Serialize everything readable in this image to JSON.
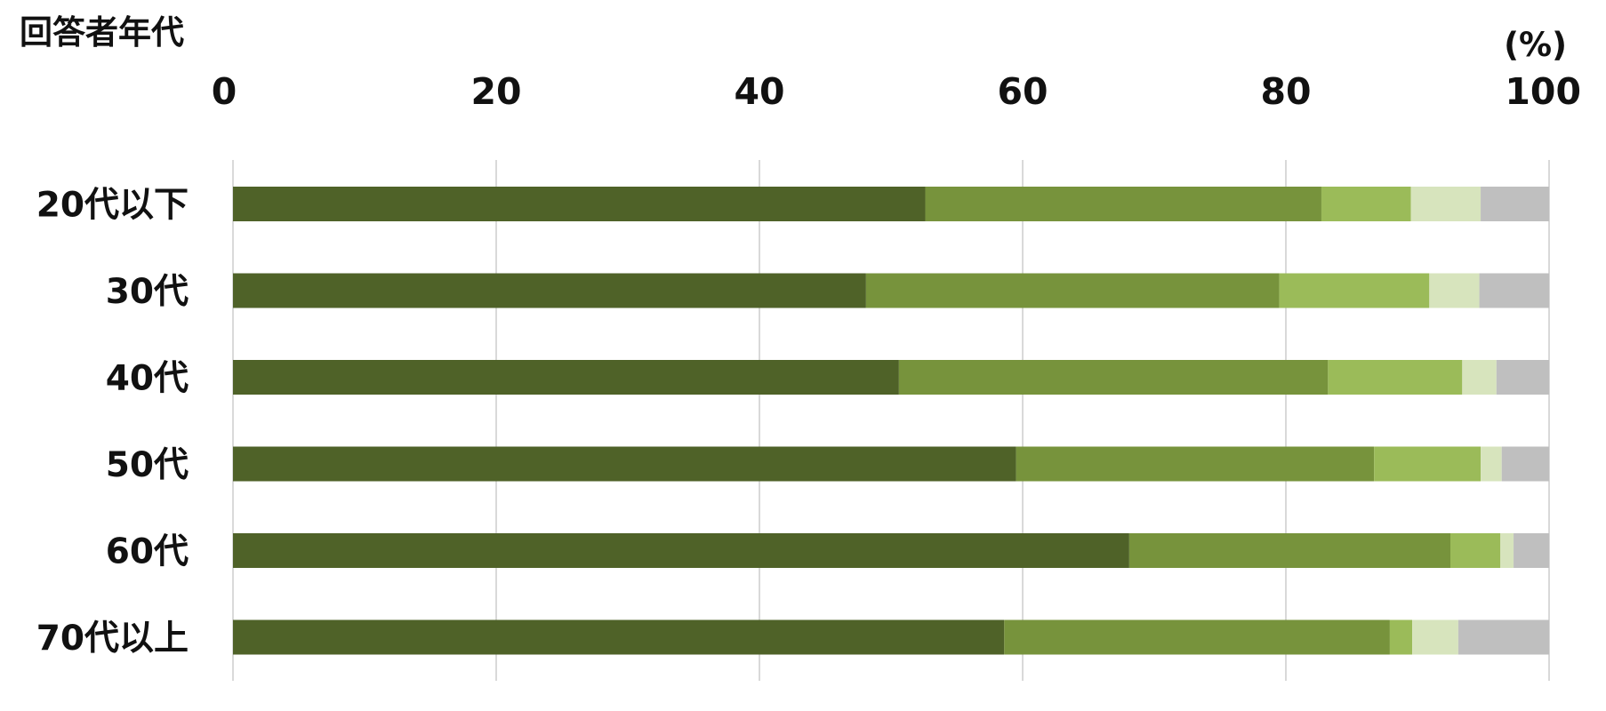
{
  "chart_data": {
    "type": "bar",
    "orientation": "horizontal",
    "stacked": true,
    "title": "",
    "ylabel": "回答者年代",
    "xlabel": "",
    "unit_label": "(%)",
    "xlim": [
      0,
      100
    ],
    "x_ticks": [
      "0",
      "20",
      "40",
      "60",
      "80",
      "100"
    ],
    "grid": true,
    "legend": "none",
    "categories": [
      "20代以下",
      "30代",
      "40代",
      "50代",
      "60代",
      "70代以上"
    ],
    "series": [
      {
        "color": "#4f6228",
        "values": [
          52.6,
          48.1,
          50.6,
          59.5,
          68.1,
          58.6
        ]
      },
      {
        "color": "#77933c",
        "values": [
          30.1,
          31.4,
          32.6,
          27.2,
          24.4,
          29.3
        ]
      },
      {
        "color": "#9bbb59",
        "values": [
          6.8,
          11.4,
          10.2,
          8.1,
          3.8,
          1.7
        ]
      },
      {
        "color": "#d7e4bd",
        "values": [
          5.3,
          3.8,
          2.6,
          1.6,
          1.0,
          3.5
        ]
      },
      {
        "color": "#bfbfbf",
        "values": [
          5.2,
          5.3,
          4.0,
          3.6,
          2.7,
          6.9
        ]
      }
    ]
  }
}
